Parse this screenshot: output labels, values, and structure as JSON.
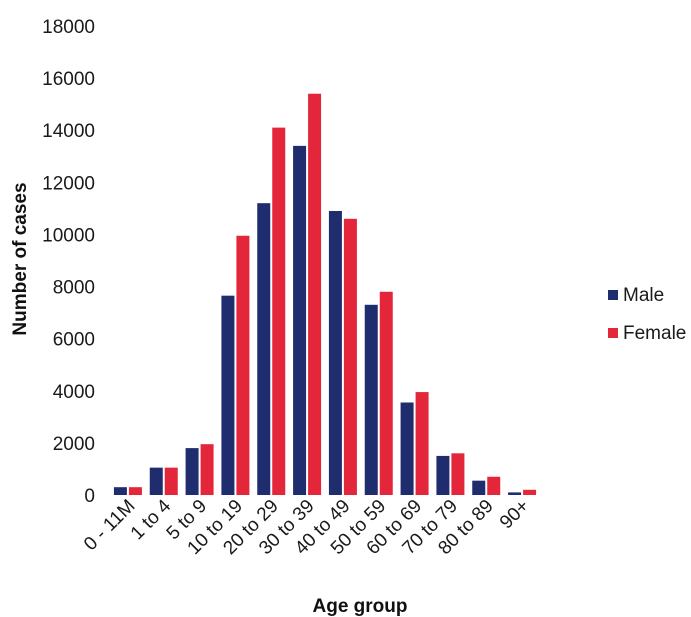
{
  "chart_data": {
    "type": "bar",
    "categories": [
      "0 - 11M",
      "1 to 4",
      "5 to 9",
      "10 to 19",
      "20 to 29",
      "30 to 39",
      "40 to 49",
      "50 to 59",
      "60 to 69",
      "70 to 79",
      "80 to 89",
      "90+"
    ],
    "series": [
      {
        "name": "Male",
        "color": "#1f2d6e",
        "values": [
          300,
          1050,
          1800,
          7650,
          11200,
          13400,
          10900,
          7300,
          3550,
          1500,
          550,
          100
        ]
      },
      {
        "name": "Female",
        "color": "#e3263a",
        "values": [
          300,
          1050,
          1950,
          9950,
          14100,
          15400,
          10600,
          7800,
          3950,
          1600,
          700,
          200
        ]
      }
    ],
    "xlabel": "Age group",
    "ylabel": "Number of cases",
    "ylim": [
      0,
      18000
    ],
    "yticks": [
      "0",
      "2000",
      "4000",
      "6000",
      "8000",
      "10000",
      "12000",
      "14000",
      "16000",
      "18000"
    ],
    "grid": false,
    "legend": "right"
  }
}
